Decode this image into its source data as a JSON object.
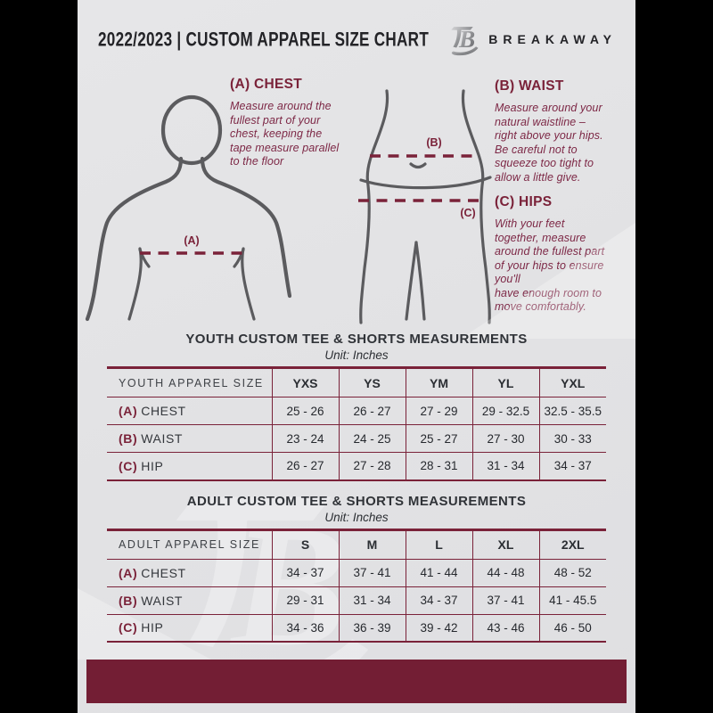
{
  "header": {
    "title": "2022/2023  |  CUSTOM APPAREL SIZE CHART",
    "brand": "BREAKAWAY",
    "logo_letter": "B"
  },
  "guide": {
    "sections": [
      {
        "title": "(A) CHEST",
        "body": "Measure around the\nfullest part of your\nchest, keeping the\ntape measure parallel\nto the floor"
      },
      {
        "title": "(B) WAIST",
        "body": "Measure around your\nnatural waistline –\nright above your hips.\nBe careful not to\nsqueeze too tight to\nallow a little give."
      },
      {
        "title": "(C) HIPS",
        "body": "With your feet\ntogether, measure\naround the fullest part\nof your hips to ensure\nyou'll\nhave enough room to\nmove comfortably."
      }
    ],
    "figure_labels": {
      "a": "(A)",
      "b": "(B)",
      "c": "(C)"
    }
  },
  "tables": [
    {
      "title": "YOUTH CUSTOM TEE & SHORTS MEASUREMENTS",
      "subtitle": "Unit: Inches",
      "header": [
        "YOUTH APPAREL SIZE",
        "YXS",
        "YS",
        "YM",
        "YL",
        "YXL"
      ],
      "rows": [
        {
          "prefix": "(A)",
          "label": "CHEST",
          "values": [
            "25 - 26",
            "26 - 27",
            "27 - 29",
            "29 - 32.5",
            "32.5 - 35.5"
          ]
        },
        {
          "prefix": "(B)",
          "label": "WAIST",
          "values": [
            "23 - 24",
            "24 - 25",
            "25 - 27",
            "27 - 30",
            "30 - 33"
          ]
        },
        {
          "prefix": "(C)",
          "label": "HIP",
          "values": [
            "26 - 27",
            "27 - 28",
            "28 - 31",
            "31 - 34",
            "34 - 37"
          ]
        }
      ]
    },
    {
      "title": "ADULT CUSTOM TEE & SHORTS MEASUREMENTS",
      "subtitle": "Unit: Inches",
      "header": [
        "ADULT APPAREL SIZE",
        "S",
        "M",
        "L",
        "XL",
        "2XL"
      ],
      "rows": [
        {
          "prefix": "(A)",
          "label": "CHEST",
          "values": [
            "34 - 37",
            "37 - 41",
            "41 - 44",
            "44 - 48",
            "48 - 52"
          ]
        },
        {
          "prefix": "(B)",
          "label": "WAIST",
          "values": [
            "29 - 31",
            "31 - 34",
            "34 - 37",
            "37 - 41",
            "41 - 45.5"
          ]
        },
        {
          "prefix": "(C)",
          "label": "HIP",
          "values": [
            "34 - 36",
            "36 - 39",
            "39 - 42",
            "43 - 46",
            "46 - 50"
          ]
        }
      ]
    }
  ],
  "colors": {
    "accent": "#7A2239",
    "accent_bar": "#731E34",
    "accent_text": "#7D2846",
    "page_bg": "#E2E2E4",
    "figure_stroke": "#5B5B5E",
    "ink": "#232327"
  }
}
